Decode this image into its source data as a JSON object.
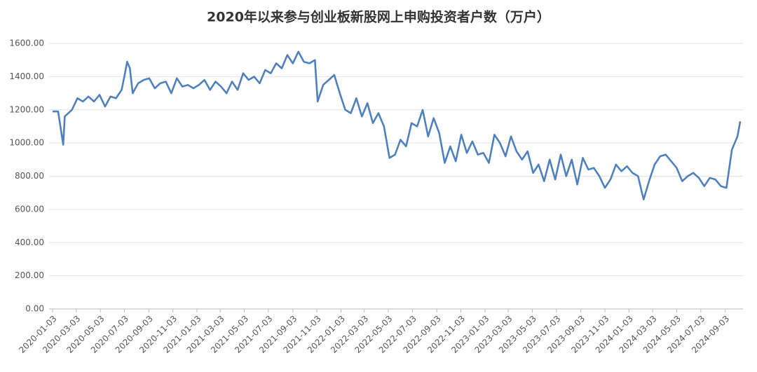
{
  "chart_data": {
    "type": "line",
    "title": "2020年以来参与创业板新股网上申购投资者户数（万户）",
    "color": "#4e81bd",
    "grid": true,
    "ylim": [
      0,
      1600
    ],
    "yticks": [
      {
        "value": 0,
        "label": "0.00"
      },
      {
        "value": 200,
        "label": "200.00"
      },
      {
        "value": 400,
        "label": "400.00"
      },
      {
        "value": 600,
        "label": "600.00"
      },
      {
        "value": 800,
        "label": "800.00"
      },
      {
        "value": 1000,
        "label": "1000.00"
      },
      {
        "value": 1200,
        "label": "1200.00"
      },
      {
        "value": 1400,
        "label": "1400.00"
      },
      {
        "value": 1600,
        "label": "1600.00"
      }
    ],
    "xlim": [
      "2020-01-03",
      "2024-10-18"
    ],
    "xticks": [
      "2020-01-03",
      "2020-03-03",
      "2020-05-03",
      "2020-07-03",
      "2020-09-03",
      "2020-11-03",
      "2021-01-03",
      "2021-03-03",
      "2021-05-03",
      "2021-07-03",
      "2021-09-03",
      "2021-11-03",
      "2022-01-03",
      "2022-03-03",
      "2022-05-03",
      "2022-07-03",
      "2022-09-03",
      "2022-11-03",
      "2023-01-03",
      "2023-03-03",
      "2023-05-03",
      "2023-07-03",
      "2023-09-03",
      "2023-11-03",
      "2024-01-03",
      "2024-03-03",
      "2024-05-03",
      "2024-07-03",
      "2024-09-03"
    ],
    "x": [
      "2020-01-03",
      "2020-01-17",
      "2020-01-30",
      "2020-02-03",
      "2020-02-21",
      "2020-03-06",
      "2020-03-20",
      "2020-04-03",
      "2020-04-17",
      "2020-05-01",
      "2020-05-15",
      "2020-05-29",
      "2020-06-12",
      "2020-06-26",
      "2020-07-03",
      "2020-07-10",
      "2020-07-17",
      "2020-07-24",
      "2020-08-07",
      "2020-08-21",
      "2020-09-04",
      "2020-09-18",
      "2020-10-02",
      "2020-10-16",
      "2020-10-30",
      "2020-11-13",
      "2020-11-27",
      "2020-12-11",
      "2020-12-25",
      "2021-01-08",
      "2021-01-22",
      "2021-02-05",
      "2021-02-19",
      "2021-03-05",
      "2021-03-19",
      "2021-04-02",
      "2021-04-16",
      "2021-04-30",
      "2021-05-14",
      "2021-05-28",
      "2021-06-11",
      "2021-06-25",
      "2021-07-09",
      "2021-07-23",
      "2021-08-06",
      "2021-08-20",
      "2021-09-03",
      "2021-09-17",
      "2021-10-01",
      "2021-10-15",
      "2021-10-29",
      "2021-11-05",
      "2021-11-19",
      "2021-12-03",
      "2021-12-17",
      "2021-12-31",
      "2022-01-14",
      "2022-01-28",
      "2022-02-11",
      "2022-02-25",
      "2022-03-11",
      "2022-03-25",
      "2022-04-08",
      "2022-04-22",
      "2022-05-06",
      "2022-05-20",
      "2022-06-03",
      "2022-06-17",
      "2022-07-01",
      "2022-07-15",
      "2022-07-29",
      "2022-08-12",
      "2022-08-26",
      "2022-09-09",
      "2022-09-23",
      "2022-10-07",
      "2022-10-21",
      "2022-11-04",
      "2022-11-18",
      "2022-12-02",
      "2022-12-16",
      "2022-12-30",
      "2023-01-13",
      "2023-01-27",
      "2023-02-10",
      "2023-02-24",
      "2023-03-10",
      "2023-03-24",
      "2023-04-07",
      "2023-04-21",
      "2023-05-05",
      "2023-05-19",
      "2023-06-02",
      "2023-06-16",
      "2023-06-30",
      "2023-07-14",
      "2023-07-28",
      "2023-08-11",
      "2023-08-25",
      "2023-09-08",
      "2023-09-22",
      "2023-10-06",
      "2023-10-20",
      "2023-11-03",
      "2023-11-17",
      "2023-12-01",
      "2023-12-15",
      "2023-12-29",
      "2024-01-12",
      "2024-01-26",
      "2024-02-09",
      "2024-02-23",
      "2024-03-08",
      "2024-03-22",
      "2024-04-05",
      "2024-04-19",
      "2024-05-03",
      "2024-05-17",
      "2024-05-31",
      "2024-06-14",
      "2024-06-28",
      "2024-07-12",
      "2024-07-26",
      "2024-08-09",
      "2024-08-23",
      "2024-09-06",
      "2024-09-20",
      "2024-10-04",
      "2024-10-11"
    ],
    "values": [
      1190,
      1190,
      990,
      1160,
      1200,
      1270,
      1250,
      1280,
      1250,
      1290,
      1220,
      1280,
      1270,
      1320,
      1400,
      1490,
      1450,
      1300,
      1360,
      1380,
      1390,
      1330,
      1360,
      1370,
      1300,
      1390,
      1340,
      1350,
      1330,
      1350,
      1380,
      1320,
      1370,
      1340,
      1300,
      1370,
      1320,
      1420,
      1380,
      1400,
      1360,
      1440,
      1420,
      1480,
      1450,
      1530,
      1480,
      1550,
      1490,
      1480,
      1500,
      1250,
      1350,
      1380,
      1410,
      1300,
      1200,
      1180,
      1270,
      1160,
      1240,
      1120,
      1180,
      1100,
      910,
      930,
      1020,
      980,
      1120,
      1100,
      1200,
      1040,
      1150,
      1060,
      880,
      980,
      890,
      1050,
      940,
      1010,
      930,
      940,
      880,
      1050,
      1000,
      920,
      1040,
      950,
      900,
      950,
      820,
      870,
      770,
      900,
      780,
      930,
      800,
      900,
      750,
      910,
      840,
      850,
      800,
      730,
      780,
      870,
      830,
      860,
      820,
      800,
      660,
      770,
      870,
      920,
      930,
      890,
      850,
      770,
      800,
      820,
      790,
      740,
      790,
      780,
      740,
      730,
      960,
      1040,
      1130
    ]
  }
}
